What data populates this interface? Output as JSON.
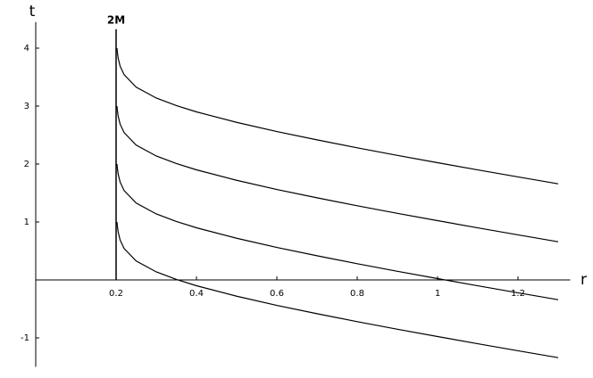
{
  "chart_data": {
    "type": "line",
    "x_label": "r",
    "y_label": "t",
    "annotations": [
      {
        "text": "2M",
        "x": 0.2
      }
    ],
    "x": [
      0.2022,
      0.203,
      0.205,
      0.21,
      0.22,
      0.25,
      0.3,
      0.35,
      0.4,
      0.5,
      0.6,
      0.7,
      0.8,
      0.9,
      1.0,
      1.1,
      1.2,
      1.3
    ],
    "series": [
      {
        "color": "#000000",
        "values": [
          1.0,
          0.937,
          0.833,
          0.689,
          0.541,
          0.327,
          0.139,
          0.008,
          -0.1,
          -0.281,
          -0.439,
          -0.583,
          -0.72,
          -0.851,
          -0.977,
          -1.101,
          -1.222,
          -1.341
        ]
      },
      {
        "color": "#000000",
        "values": [
          2.0,
          1.937,
          1.833,
          1.689,
          1.541,
          1.327,
          1.139,
          1.008,
          0.9,
          0.719,
          0.561,
          0.417,
          0.28,
          0.149,
          0.023,
          -0.101,
          -0.222,
          -0.341
        ]
      },
      {
        "color": "#000000",
        "values": [
          3.0,
          2.937,
          2.833,
          2.689,
          2.541,
          2.327,
          2.139,
          2.008,
          1.9,
          1.719,
          1.561,
          1.417,
          1.28,
          1.149,
          1.023,
          0.899,
          0.778,
          0.659
        ]
      },
      {
        "color": "#000000",
        "values": [
          4.0,
          3.937,
          3.833,
          3.689,
          3.541,
          3.327,
          3.139,
          3.008,
          2.9,
          2.719,
          2.561,
          2.417,
          2.28,
          2.149,
          2.023,
          1.899,
          1.778,
          1.659
        ]
      }
    ],
    "xlim": [
      0,
      1.33
    ],
    "ylim": [
      -1.5,
      4.45
    ],
    "xticks": [
      0.2,
      0.4,
      0.6,
      0.8,
      1,
      1.2
    ],
    "yticks": [
      -1,
      1,
      2,
      3,
      4
    ]
  }
}
